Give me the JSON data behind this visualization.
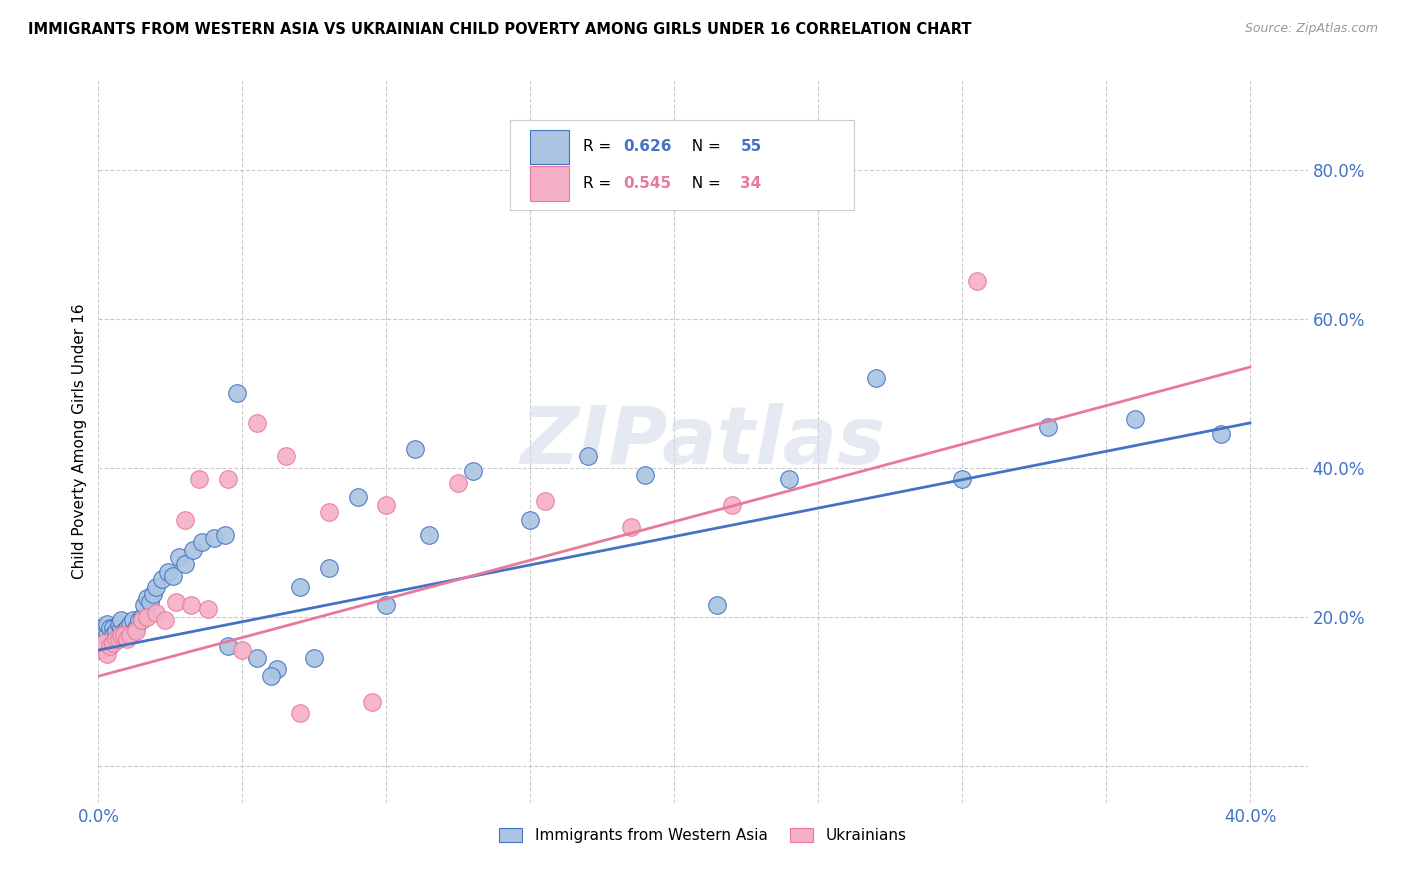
{
  "title": "IMMIGRANTS FROM WESTERN ASIA VS UKRAINIAN CHILD POVERTY AMONG GIRLS UNDER 16 CORRELATION CHART",
  "source": "Source: ZipAtlas.com",
  "ylabel": "Child Poverty Among Girls Under 16",
  "xlim": [
    0.0,
    0.42
  ],
  "ylim": [
    -0.05,
    0.92
  ],
  "ytick_values": [
    0.0,
    0.2,
    0.4,
    0.6,
    0.8
  ],
  "xtick_values": [
    0.0,
    0.05,
    0.1,
    0.15,
    0.2,
    0.25,
    0.3,
    0.35,
    0.4
  ],
  "color_blue": "#aac4e2",
  "color_pink": "#f5b0c5",
  "color_blue_dark": "#4472c4",
  "color_pink_dark": "#e8799a",
  "watermark": "ZIPatlas",
  "blue_scatter_x": [
    0.001,
    0.002,
    0.003,
    0.003,
    0.004,
    0.005,
    0.005,
    0.006,
    0.007,
    0.008,
    0.008,
    0.009,
    0.01,
    0.011,
    0.012,
    0.013,
    0.014,
    0.015,
    0.016,
    0.017,
    0.018,
    0.019,
    0.02,
    0.022,
    0.024,
    0.026,
    0.028,
    0.03,
    0.033,
    0.036,
    0.04,
    0.044,
    0.048,
    0.055,
    0.062,
    0.07,
    0.08,
    0.09,
    0.1,
    0.115,
    0.13,
    0.15,
    0.17,
    0.19,
    0.215,
    0.24,
    0.27,
    0.3,
    0.33,
    0.36,
    0.39,
    0.06,
    0.045,
    0.075,
    0.11
  ],
  "blue_scatter_y": [
    0.185,
    0.175,
    0.175,
    0.19,
    0.185,
    0.185,
    0.175,
    0.18,
    0.19,
    0.185,
    0.195,
    0.18,
    0.185,
    0.19,
    0.195,
    0.185,
    0.195,
    0.2,
    0.215,
    0.225,
    0.22,
    0.23,
    0.24,
    0.25,
    0.26,
    0.255,
    0.28,
    0.27,
    0.29,
    0.3,
    0.305,
    0.31,
    0.5,
    0.145,
    0.13,
    0.24,
    0.265,
    0.36,
    0.215,
    0.31,
    0.395,
    0.33,
    0.415,
    0.39,
    0.215,
    0.385,
    0.52,
    0.385,
    0.455,
    0.465,
    0.445,
    0.12,
    0.16,
    0.145,
    0.425
  ],
  "pink_scatter_x": [
    0.001,
    0.002,
    0.003,
    0.004,
    0.005,
    0.006,
    0.007,
    0.008,
    0.009,
    0.01,
    0.011,
    0.013,
    0.015,
    0.017,
    0.02,
    0.023,
    0.027,
    0.032,
    0.038,
    0.045,
    0.055,
    0.065,
    0.08,
    0.1,
    0.125,
    0.155,
    0.185,
    0.03,
    0.05,
    0.07,
    0.095,
    0.035,
    0.22,
    0.305
  ],
  "pink_scatter_y": [
    0.155,
    0.165,
    0.15,
    0.16,
    0.165,
    0.17,
    0.17,
    0.175,
    0.175,
    0.17,
    0.175,
    0.18,
    0.195,
    0.2,
    0.205,
    0.195,
    0.22,
    0.215,
    0.21,
    0.385,
    0.46,
    0.415,
    0.34,
    0.35,
    0.38,
    0.355,
    0.32,
    0.33,
    0.155,
    0.07,
    0.085,
    0.385,
    0.35,
    0.65
  ],
  "blue_line_x": [
    0.0,
    0.4
  ],
  "blue_line_y": [
    0.155,
    0.46
  ],
  "pink_line_x": [
    0.0,
    0.4
  ],
  "pink_line_y": [
    0.12,
    0.535
  ]
}
